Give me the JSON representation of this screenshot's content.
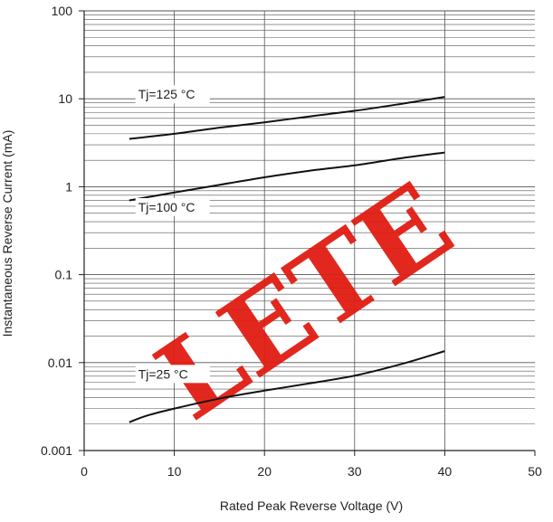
{
  "chart_data": {
    "type": "line",
    "xlabel": "Rated Peak Reverse Voltage (V)",
    "ylabel": "Instantaneous Reverse Current (mA)",
    "xlim": [
      0,
      50
    ],
    "ylim": [
      0.001,
      100
    ],
    "yscale": "log",
    "grid": true,
    "x_ticks": [
      "0",
      "10",
      "20",
      "30",
      "40",
      "50"
    ],
    "y_ticks": [
      "0.001",
      "0.01",
      "0.1",
      "1",
      "10",
      "100"
    ],
    "series": [
      {
        "name": "Tj=125 °C",
        "x": [
          5,
          10,
          15,
          20,
          25,
          30,
          35,
          40
        ],
        "y": [
          3.5,
          4.0,
          4.7,
          5.4,
          6.3,
          7.3,
          8.7,
          10.5
        ]
      },
      {
        "name": "Tj=100 °C",
        "x": [
          5,
          10,
          15,
          20,
          25,
          30,
          35,
          40
        ],
        "y": [
          0.7,
          0.86,
          1.05,
          1.28,
          1.52,
          1.75,
          2.1,
          2.45
        ]
      },
      {
        "name": "Tj=25 °C",
        "x": [
          5,
          7,
          10,
          15,
          20,
          25,
          30,
          35,
          40
        ],
        "y": [
          0.0021,
          0.0025,
          0.003,
          0.0039,
          0.0048,
          0.0058,
          0.0071,
          0.0095,
          0.0135
        ]
      }
    ]
  },
  "watermark_text": "LETE",
  "colors": {
    "line": "#111111",
    "grid": "#555555",
    "watermark": "#e11d12"
  }
}
